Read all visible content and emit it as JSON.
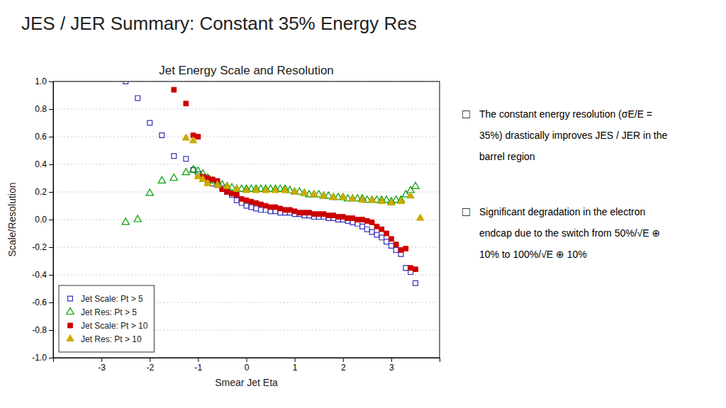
{
  "chart_data": {
    "type": "scatter",
    "title": "JES / JER Summary: Constant 35% Energy Res",
    "subtitle": "Jet Energy Scale and Resolution",
    "x_label": "Smear Jet Eta",
    "y_label": "Scale/Resolution",
    "xlim": [
      -4,
      4
    ],
    "ylim": [
      -1,
      1
    ],
    "xticks": [
      -3,
      -2,
      -1,
      0,
      1,
      2,
      3
    ],
    "yticks": [
      {
        "value": -1,
        "label": "-1.0"
      },
      {
        "value": -0.8,
        "label": "-0.8"
      },
      {
        "value": -0.6,
        "label": "-0.6"
      },
      {
        "value": -0.4,
        "label": "-0.4"
      },
      {
        "value": -0.2,
        "label": "-0.2"
      },
      {
        "value": 0,
        "label": "0.0"
      },
      {
        "value": 0.2,
        "label": "0.2"
      },
      {
        "value": 0.4,
        "label": "0.4"
      },
      {
        "value": 0.6,
        "label": "0.6"
      },
      {
        "value": 0.8,
        "label": "0.8"
      },
      {
        "value": 1,
        "label": "1.0"
      }
    ],
    "grid": "y",
    "legend": "lower left",
    "series": [
      {
        "name": "Jet Scale: Pt > 5",
        "color": "#3333bb",
        "marker": "square-open",
        "x": [
          -2.5,
          -2.25,
          -2.0,
          -1.75,
          -1.5,
          -1.25,
          -1.1,
          -1.0,
          -0.9,
          -0.8,
          -0.7,
          -0.6,
          -0.5,
          -0.4,
          -0.3,
          -0.2,
          -0.1,
          0.0,
          0.1,
          0.2,
          0.3,
          0.4,
          0.5,
          0.6,
          0.7,
          0.8,
          0.9,
          1.0,
          1.1,
          1.2,
          1.3,
          1.4,
          1.5,
          1.6,
          1.7,
          1.8,
          1.9,
          2.0,
          2.1,
          2.2,
          2.3,
          2.4,
          2.5,
          2.6,
          2.7,
          2.8,
          2.9,
          3.0,
          3.1,
          3.2,
          3.3,
          3.4,
          3.5
        ],
        "values": [
          1.0,
          0.88,
          0.7,
          0.61,
          0.46,
          0.44,
          0.36,
          0.33,
          0.3,
          0.28,
          0.26,
          0.25,
          0.23,
          0.2,
          0.18,
          0.14,
          0.12,
          0.1,
          0.09,
          0.08,
          0.07,
          0.07,
          0.06,
          0.06,
          0.05,
          0.05,
          0.05,
          0.04,
          0.04,
          0.03,
          0.03,
          0.02,
          0.02,
          0.02,
          0.01,
          0.01,
          0.0,
          0.0,
          -0.01,
          -0.02,
          -0.03,
          -0.05,
          -0.07,
          -0.09,
          -0.11,
          -0.13,
          -0.16,
          -0.19,
          -0.22,
          -0.25,
          -0.35,
          -0.38,
          -0.46
        ]
      },
      {
        "name": "Jet Res: Pt > 5",
        "color": "#009900",
        "marker": "triangle-open",
        "x": [
          -2.5,
          -2.25,
          -2.0,
          -1.75,
          -1.5,
          -1.25,
          -1.1,
          -1.0,
          -0.9,
          -0.8,
          -0.7,
          -0.6,
          -0.5,
          -0.4,
          -0.3,
          -0.2,
          -0.1,
          0.0,
          0.1,
          0.2,
          0.3,
          0.4,
          0.5,
          0.6,
          0.7,
          0.8,
          0.9,
          1.0,
          1.1,
          1.2,
          1.3,
          1.4,
          1.5,
          1.6,
          1.7,
          1.8,
          1.9,
          2.0,
          2.1,
          2.2,
          2.3,
          2.4,
          2.5,
          2.6,
          2.7,
          2.8,
          2.9,
          3.0,
          3.1,
          3.2,
          3.3,
          3.4,
          3.5
        ],
        "values": [
          -0.02,
          0.0,
          0.19,
          0.28,
          0.3,
          0.34,
          0.36,
          0.35,
          0.33,
          0.3,
          0.28,
          0.26,
          0.25,
          0.24,
          0.23,
          0.22,
          0.22,
          0.22,
          0.22,
          0.22,
          0.22,
          0.22,
          0.22,
          0.22,
          0.22,
          0.22,
          0.21,
          0.2,
          0.2,
          0.19,
          0.18,
          0.18,
          0.18,
          0.17,
          0.17,
          0.16,
          0.16,
          0.16,
          0.15,
          0.15,
          0.15,
          0.15,
          0.14,
          0.14,
          0.14,
          0.14,
          0.14,
          0.13,
          0.14,
          0.14,
          0.18,
          0.21,
          0.24
        ]
      },
      {
        "name": "Jet Scale: Pt > 10",
        "color": "#cc0000",
        "marker": "square",
        "x": [
          -1.5,
          -1.25,
          -1.1,
          -1.0,
          -0.9,
          -0.8,
          -0.7,
          -0.6,
          -0.5,
          -0.4,
          -0.3,
          -0.2,
          -0.1,
          0.0,
          0.1,
          0.2,
          0.3,
          0.4,
          0.5,
          0.6,
          0.7,
          0.8,
          0.9,
          1.0,
          1.1,
          1.2,
          1.3,
          1.4,
          1.5,
          1.6,
          1.7,
          1.8,
          1.9,
          2.0,
          2.1,
          2.2,
          2.3,
          2.4,
          2.5,
          2.6,
          2.7,
          2.8,
          2.9,
          3.0,
          3.1,
          3.2,
          3.3,
          3.4,
          3.5
        ],
        "values": [
          0.94,
          0.84,
          0.61,
          0.6,
          0.31,
          0.3,
          0.29,
          0.28,
          0.22,
          0.2,
          0.19,
          0.18,
          0.15,
          0.14,
          0.13,
          0.12,
          0.11,
          0.1,
          0.09,
          0.09,
          0.08,
          0.07,
          0.07,
          0.06,
          0.05,
          0.05,
          0.05,
          0.04,
          0.04,
          0.04,
          0.03,
          0.03,
          0.02,
          0.02,
          0.01,
          0.01,
          0.0,
          0.0,
          -0.01,
          -0.02,
          -0.05,
          -0.07,
          -0.1,
          -0.14,
          -0.18,
          -0.22,
          -0.21,
          -0.35,
          -0.36
        ]
      },
      {
        "name": "Jet Res: Pt > 10",
        "color": "#ccaa00",
        "marker": "triangle",
        "x": [
          -1.25,
          -1.1,
          -1.0,
          -0.9,
          -0.8,
          -0.6,
          -0.4,
          -0.2,
          0.0,
          0.2,
          0.4,
          0.6,
          0.8,
          1.0,
          1.2,
          1.4,
          1.6,
          1.8,
          2.0,
          2.2,
          2.4,
          2.6,
          2.8,
          3.0,
          3.2,
          3.4,
          3.6
        ],
        "values": [
          0.59,
          0.57,
          0.31,
          0.29,
          0.26,
          0.25,
          0.24,
          0.22,
          0.21,
          0.21,
          0.21,
          0.21,
          0.21,
          0.2,
          0.19,
          0.18,
          0.17,
          0.16,
          0.16,
          0.15,
          0.14,
          0.14,
          0.13,
          0.12,
          0.13,
          0.17,
          0.01
        ]
      }
    ],
    "annotations": [
      {
        "bullet": "□",
        "lines": [
          "The constant energy resolution (σE/E =",
          "35%) drastically improves JES / JER in the",
          "barrel region"
        ]
      },
      {
        "bullet": "□",
        "lines": [
          "Significant degradation in the electron",
          "endcap due to the switch from 50%/√E ⊕",
          "10% to 100%/√E ⊕ 10%"
        ]
      }
    ]
  }
}
